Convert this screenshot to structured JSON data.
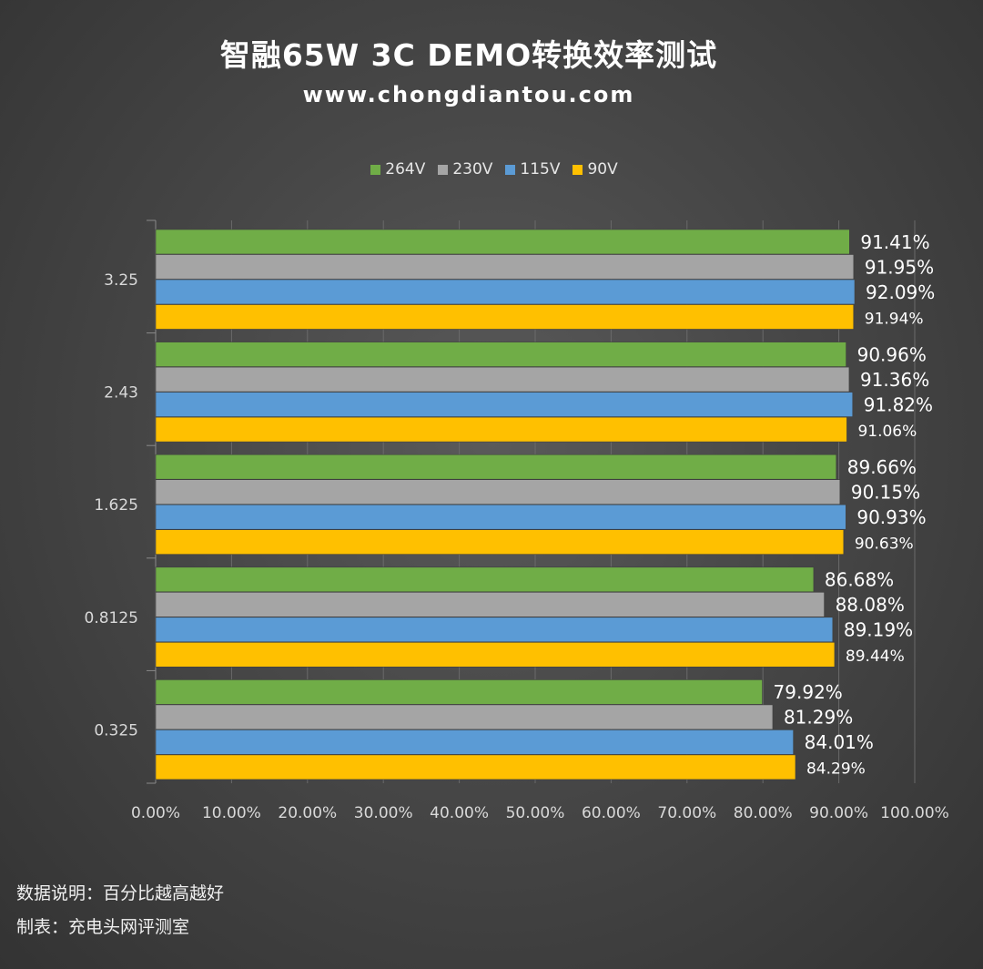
{
  "title": "智融65W 3C DEMO转换效率测试",
  "subtitle": "www.chongdiantou.com",
  "notes": {
    "description": "数据说明：百分比越高越好",
    "made_by": "制表：充电头网评测室"
  },
  "colors": {
    "264V": "#70ad47",
    "230V": "#a5a5a5",
    "115V": "#5b9bd5",
    "90V": "#ffc000"
  },
  "chart_data": {
    "type": "bar",
    "orientation": "horizontal",
    "title": "智融65W 3C DEMO转换效率测试",
    "categories": [
      "3.25",
      "2.43",
      "1.625",
      "0.8125",
      "0.325"
    ],
    "series": [
      {
        "name": "264V",
        "values": [
          91.41,
          90.96,
          89.66,
          86.68,
          79.92
        ],
        "labels": [
          "91.41%",
          "90.96%",
          "89.66%",
          "86.68%",
          "79.92%"
        ]
      },
      {
        "name": "230V",
        "values": [
          91.95,
          91.36,
          90.15,
          88.08,
          81.29
        ],
        "labels": [
          "91.95%",
          "91.36%",
          "90.15%",
          "88.08%",
          "81.29%"
        ]
      },
      {
        "name": "115V",
        "values": [
          92.09,
          91.82,
          90.93,
          89.19,
          84.01
        ],
        "labels": [
          "92.09%",
          "91.82%",
          "90.93%",
          "89.19%",
          "84.01%"
        ]
      },
      {
        "name": "90V",
        "values": [
          91.94,
          91.06,
          90.63,
          89.44,
          84.29
        ],
        "labels": [
          "91.94%",
          "91.06%",
          "90.63%",
          "89.44%",
          "84.29%"
        ]
      }
    ],
    "xlim": [
      0,
      100
    ],
    "xticks": [
      "0.00%",
      "10.00%",
      "20.00%",
      "30.00%",
      "40.00%",
      "50.00%",
      "60.00%",
      "70.00%",
      "80.00%",
      "90.00%",
      "100.00%"
    ],
    "xlabel": "",
    "ylabel": "",
    "grid": true,
    "legend_position": "top"
  }
}
